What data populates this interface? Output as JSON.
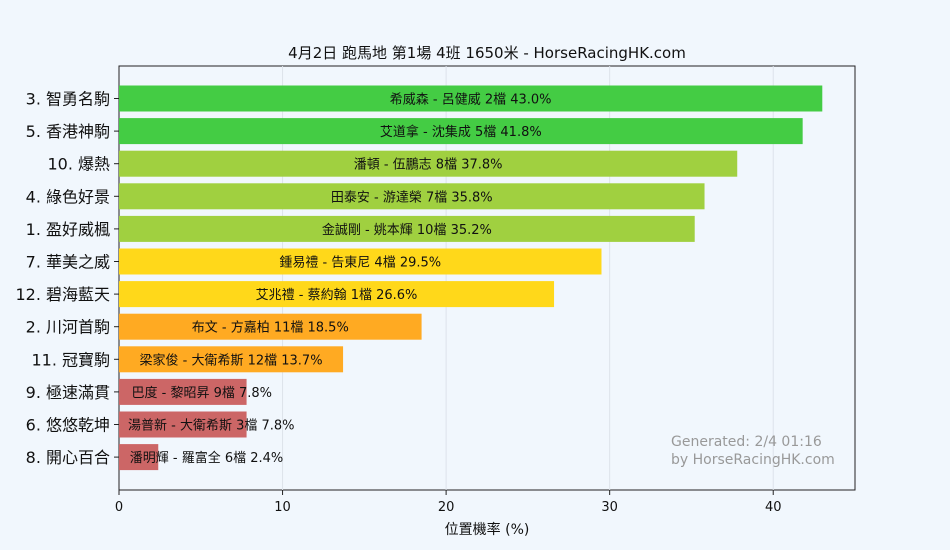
{
  "chart_data": {
    "type": "bar",
    "orientation": "horizontal",
    "title": "4月2日  跑馬地  第1場  4班  1650米 - HorseRacingHK.com",
    "xlabel": "位置機率 (%)",
    "ylabel": "",
    "xlim": [
      0,
      45
    ],
    "xticks": [
      "0",
      "10",
      "20",
      "30",
      "40"
    ],
    "grid": "vertical",
    "categories": [
      "3. 智勇名駒",
      "5. 香港神駒",
      "10. 爆熱",
      "4. 綠色好景",
      "1. 盈好威楓",
      "7. 華美之威",
      "12. 碧海藍天",
      "2. 川河首駒",
      "11. 冠寶駒",
      "9. 極速滿貫",
      "6. 悠悠乾坤",
      "8. 開心百合"
    ],
    "values": [
      43.0,
      41.8,
      37.8,
      35.8,
      35.2,
      29.5,
      26.6,
      18.5,
      13.7,
      7.8,
      7.8,
      2.4
    ],
    "bar_labels": [
      "希威森 - 呂健威 2檔  43.0%",
      "艾道拿 - 沈集成 5檔  41.8%",
      "潘頓 - 伍鵬志 8檔  37.8%",
      "田泰安 - 游達榮 7檔  35.8%",
      "金誠剛 - 姚本輝 10檔  35.2%",
      "鍾易禮 - 告東尼 4檔  29.5%",
      "艾兆禮 - 蔡約翰 1檔  26.6%",
      "布文 - 方嘉柏 11檔  18.5%",
      "梁家俊 - 大衛希斯 12檔  13.7%",
      "巴度 - 黎昭昇 9檔  7.8%",
      "湯普新 - 大衛希斯 3檔  7.8%",
      "潘明輝 - 羅富全 6檔  2.4%"
    ],
    "colors": [
      "#44cc44",
      "#44cc44",
      "#a0d040",
      "#a0d040",
      "#a0d040",
      "#ffd81a",
      "#ffd81a",
      "#ffaa22",
      "#ffaa22",
      "#cc6666",
      "#cc6666",
      "#cc6666"
    ],
    "watermark": [
      "Generated: 2/4 01:16",
      "by HorseRacingHK.com"
    ]
  }
}
